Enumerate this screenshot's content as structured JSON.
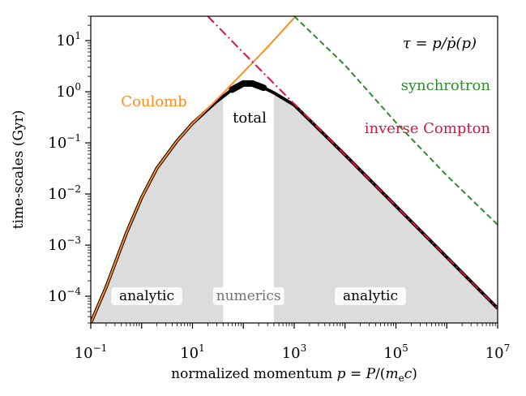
{
  "chart_data": {
    "type": "line",
    "xscale": "log",
    "yscale": "log",
    "xlim": [
      0.1,
      10000000
    ],
    "ylim": [
      3e-05,
      30
    ],
    "xlabel": "normalized momentum p = P/(m_e c)",
    "ylabel": "time-scales (Gyr)",
    "formula": "τ = p/ṗ(p)",
    "x_ticks": [
      {
        "base": "10",
        "exp": "−1",
        "value": 0.1
      },
      {
        "base": "10",
        "exp": "1",
        "value": 10
      },
      {
        "base": "10",
        "exp": "3",
        "value": 1000
      },
      {
        "base": "10",
        "exp": "5",
        "value": 100000
      },
      {
        "base": "10",
        "exp": "7",
        "value": 10000000
      }
    ],
    "y_ticks": [
      {
        "base": "10",
        "exp": "−4",
        "value": 0.0001
      },
      {
        "base": "10",
        "exp": "−3",
        "value": 0.001
      },
      {
        "base": "10",
        "exp": "−2",
        "value": 0.01
      },
      {
        "base": "10",
        "exp": "−1",
        "value": 0.1
      },
      {
        "base": "10",
        "exp": "0",
        "value": 1
      },
      {
        "base": "10",
        "exp": "1",
        "value": 10
      }
    ],
    "series": [
      {
        "name": "Coulomb",
        "color": "#ff8c1a",
        "style": "solid",
        "x": [
          0.1,
          0.2,
          0.5,
          1,
          2,
          5,
          10,
          30,
          100,
          300,
          1000
        ],
        "y": [
          3e-05,
          0.00015,
          0.0017,
          0.0085,
          0.032,
          0.11,
          0.24,
          0.7,
          2.4,
          7.5,
          28
        ]
      },
      {
        "name": "synchrotron",
        "color": "#2e8b2e",
        "style": "dashed",
        "x": [
          1000,
          10000,
          100000,
          1000000,
          10000000
        ],
        "y": [
          30,
          3.3,
          0.25,
          0.023,
          0.0025
        ]
      },
      {
        "name": "inverse Compton",
        "color": "#dc143c",
        "style": "dashdot",
        "x": [
          20,
          100,
          1000,
          10000,
          100000,
          1000000,
          10000000
        ],
        "y": [
          30,
          5.8,
          0.58,
          0.058,
          0.0058,
          0.00058,
          5.8e-05
        ]
      },
      {
        "name": "total",
        "color": "#000000",
        "style": "solid",
        "x": [
          0.1,
          0.2,
          0.5,
          1,
          2,
          5,
          10,
          30,
          60,
          100,
          150,
          250,
          400,
          1000,
          10000,
          100000,
          1000000,
          10000000
        ],
        "y": [
          3e-05,
          0.00015,
          0.0017,
          0.0085,
          0.032,
          0.11,
          0.24,
          0.65,
          1.1,
          1.45,
          1.45,
          1.2,
          0.95,
          0.55,
          0.058,
          0.0058,
          0.00058,
          5.8e-05
        ]
      }
    ],
    "regions": [
      {
        "label": "analytic",
        "x_range": [
          0.1,
          40
        ]
      },
      {
        "label": "numerics",
        "x_range": [
          40,
          400
        ]
      },
      {
        "label": "analytic",
        "x_range": [
          400,
          10000000
        ]
      }
    ],
    "annotations": {
      "coulomb": "Coulomb",
      "total": "total",
      "synchrotron": "synchrotron",
      "inverse_compton": "inverse Compton",
      "formula": "τ = p/ṗ(p)"
    },
    "grid": false,
    "legend": "none"
  }
}
